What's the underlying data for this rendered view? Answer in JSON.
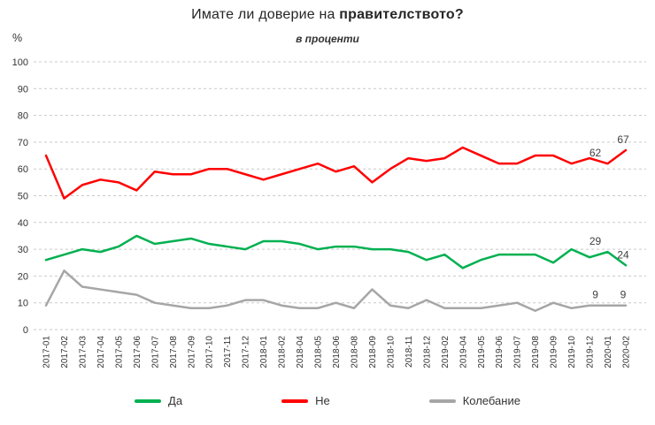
{
  "title": {
    "prefix": "Имате ли доверие на ",
    "bold": "правителството?"
  },
  "subtitle": "в проценти",
  "y_axis": {
    "unit_label": "%",
    "ticks": [
      100,
      90,
      80,
      70,
      60,
      50,
      40,
      30,
      20,
      10,
      0
    ]
  },
  "chart_data": {
    "type": "line",
    "title": "Имате ли доверие на правителството?",
    "xlabel": "",
    "ylabel": "%",
    "ylim": [
      0,
      100
    ],
    "grid": true,
    "legend_position": "bottom",
    "categories": [
      "2017-01",
      "2017-02",
      "2017-03",
      "2017-04",
      "2017-05",
      "2017-06",
      "2017-07",
      "2017-08",
      "2017-09",
      "2017-10",
      "2017-11",
      "2017-12",
      "2018-01",
      "2018-02",
      "2018-04",
      "2018-05",
      "2018-06",
      "2018-08",
      "2018-09",
      "2018-10",
      "2018-11",
      "2018-12",
      "2019-02",
      "2019-04",
      "2019-05",
      "2019-06",
      "2019-07",
      "2019-08",
      "2019-09",
      "2019-10",
      "2019-12",
      "2020-01",
      "2020-02"
    ],
    "series": [
      {
        "name": "Да",
        "color": "#00b050",
        "values": [
          26,
          28,
          30,
          29,
          31,
          35,
          32,
          33,
          34,
          32,
          31,
          30,
          33,
          33,
          32,
          30,
          31,
          31,
          30,
          30,
          29,
          26,
          28,
          23,
          26,
          28,
          28,
          28,
          25,
          30,
          27,
          29,
          24
        ],
        "end_labels": [
          "29",
          "24"
        ]
      },
      {
        "name": "Не",
        "color": "#ff0000",
        "values": [
          65,
          49,
          54,
          56,
          55,
          52,
          59,
          58,
          58,
          60,
          60,
          58,
          56,
          58,
          60,
          62,
          59,
          61,
          55,
          60,
          64,
          63,
          64,
          68,
          65,
          62,
          62,
          65,
          65,
          62,
          64,
          62,
          67
        ],
        "end_labels": [
          "62",
          "67"
        ]
      },
      {
        "name": "Колебание",
        "color": "#a6a6a6",
        "values": [
          9,
          22,
          16,
          15,
          14,
          13,
          10,
          9,
          8,
          8,
          9,
          11,
          11,
          9,
          8,
          8,
          10,
          8,
          15,
          9,
          8,
          11,
          8,
          8,
          8,
          9,
          10,
          7,
          10,
          8,
          9,
          9,
          9
        ],
        "end_labels": [
          "9",
          "9"
        ]
      }
    ]
  }
}
